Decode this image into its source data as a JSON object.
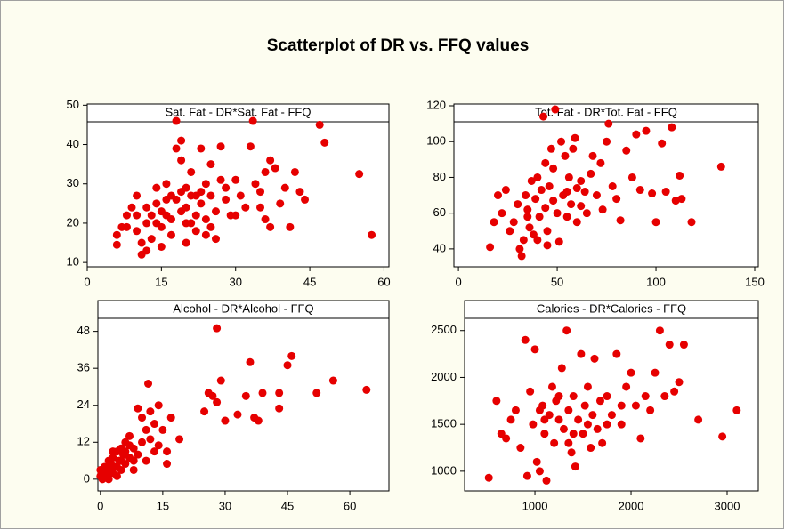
{
  "title": "Scatterplot of DR vs. FFQ values",
  "chart_data": [
    {
      "type": "scatter",
      "title": "Sat. Fat - DR*Sat. Fat - FFQ",
      "color": "#e60000",
      "xlim": [
        0,
        61
      ],
      "ylim": [
        8.9,
        50.3
      ],
      "xticks": [
        0,
        15,
        30,
        45,
        60
      ],
      "yticks": [
        10,
        20,
        30,
        40,
        50
      ],
      "x": [
        6,
        6,
        7,
        8,
        9,
        10,
        10,
        11,
        11,
        12,
        12,
        13,
        13,
        14,
        14,
        15,
        15,
        16,
        16,
        17,
        17,
        18,
        18,
        19,
        19,
        19,
        20,
        20,
        20,
        21,
        21,
        22,
        22,
        23,
        23,
        24,
        24,
        25,
        25,
        26,
        27,
        27,
        28,
        29,
        30,
        31,
        32,
        33,
        33.5,
        34,
        35,
        36,
        37,
        37,
        38,
        39,
        40,
        41,
        42,
        43,
        44,
        47,
        48,
        55,
        57.5,
        14,
        16,
        18,
        20,
        22,
        24,
        26,
        15,
        17,
        19,
        21,
        23,
        25,
        12,
        10,
        8,
        28,
        30,
        36,
        35
      ],
      "values": [
        14.5,
        17,
        19,
        22,
        24,
        27,
        18,
        12,
        15,
        13,
        20,
        16,
        22,
        29,
        25,
        19,
        23,
        30,
        26,
        21,
        17,
        46,
        39,
        41,
        36,
        28,
        24,
        20,
        15,
        33,
        27,
        22,
        18,
        25,
        39,
        30,
        21,
        35,
        27,
        23,
        39.5,
        31,
        26,
        22,
        31,
        27,
        24,
        39.5,
        46,
        30,
        28,
        33,
        36,
        19,
        34,
        25,
        29,
        19,
        33,
        28,
        26,
        45,
        40.5,
        32.5,
        17,
        20,
        22,
        26,
        29,
        27,
        17,
        16,
        14,
        27,
        23,
        20,
        28,
        19,
        24,
        22,
        19,
        29,
        22,
        21,
        24
      ]
    },
    {
      "type": "scatter",
      "title": "Tot. Fat - DR*Tot. Fat - FFQ",
      "color": "#e60000",
      "xlim": [
        -2.3,
        151.8
      ],
      "ylim": [
        30,
        121
      ],
      "xticks": [
        0,
        50,
        100,
        150
      ],
      "yticks": [
        40,
        60,
        80,
        100,
        120
      ],
      "x": [
        16,
        18,
        20,
        22,
        24,
        26,
        28,
        30,
        31,
        32,
        33,
        34,
        35,
        36,
        37,
        38,
        39,
        40,
        41,
        42,
        43,
        44,
        45,
        46,
        47,
        48,
        49,
        50,
        51,
        52,
        53,
        54,
        55,
        56,
        57,
        58,
        59,
        60,
        62,
        64,
        65,
        67,
        68,
        70,
        72,
        73,
        75,
        76,
        78,
        80,
        82,
        85,
        88,
        90,
        92,
        95,
        98,
        100,
        103,
        105,
        108,
        110,
        112,
        113,
        118,
        133,
        45,
        40,
        48,
        55,
        62,
        35,
        44,
        60
      ],
      "values": [
        41,
        55,
        70,
        60,
        73,
        50,
        55,
        65,
        40,
        36,
        45,
        70,
        62,
        52,
        78,
        48,
        68,
        80,
        58,
        73,
        114,
        63,
        50,
        75,
        96,
        85,
        118,
        60,
        44,
        100,
        70,
        92,
        58,
        80,
        65,
        96,
        102,
        55,
        78,
        72,
        60,
        82,
        92,
        70,
        88,
        62,
        100,
        110,
        75,
        68,
        56,
        95,
        80,
        104,
        73,
        106,
        71,
        55,
        99,
        72,
        108,
        67,
        81,
        68,
        55,
        86,
        42,
        45,
        67,
        72,
        64,
        58,
        88,
        74
      ]
    },
    {
      "type": "scatter",
      "title": "Alcohol - DR*Alcohol - FFQ",
      "color": "#e60000",
      "xlim": [
        -0.6,
        69.4
      ],
      "ylim": [
        -3.8,
        58
      ],
      "xticks": [
        0,
        15,
        30,
        45,
        60
      ],
      "yticks": [
        0,
        12,
        24,
        36,
        48
      ],
      "x": [
        0.5,
        1,
        1,
        1.5,
        2,
        2,
        2.5,
        3,
        3,
        3.5,
        4,
        4,
        4.5,
        5,
        5,
        5.5,
        6,
        6,
        7,
        7,
        8,
        8,
        9,
        9,
        10,
        10,
        11,
        11,
        11.5,
        12,
        12,
        13,
        13,
        14,
        14,
        15,
        16,
        16,
        17,
        19,
        25,
        26,
        27,
        28,
        28,
        29,
        30,
        33,
        35,
        36,
        37,
        38,
        39,
        43,
        43,
        45,
        46,
        52,
        56,
        64,
        1,
        2,
        3,
        4,
        5,
        6,
        7,
        0,
        0,
        8
      ],
      "values": [
        0,
        0.5,
        2,
        1,
        3,
        0,
        5,
        2,
        7,
        4,
        1,
        9,
        6,
        3,
        10,
        8,
        5,
        12,
        7,
        14,
        10,
        3,
        8,
        23,
        12,
        20,
        16,
        6,
        31,
        13,
        22,
        9,
        18,
        24,
        11,
        16,
        5,
        9,
        20,
        13,
        22,
        28,
        27,
        49,
        25,
        32,
        19,
        21,
        27,
        38,
        20,
        19,
        28,
        28,
        23,
        37,
        40,
        28,
        32,
        29,
        4,
        6,
        9,
        4,
        6,
        9,
        11,
        1,
        3,
        6
      ]
    },
    {
      "type": "scatter",
      "title": "Calories - DR*Calories - FFQ",
      "color": "#e60000",
      "xlim": [
        268,
        3324
      ],
      "ylim": [
        790,
        2820
      ],
      "xticks": [
        1000,
        2000,
        3000
      ],
      "yticks": [
        1000,
        1500,
        2000,
        2500
      ],
      "x": [
        520,
        600,
        700,
        750,
        800,
        850,
        900,
        920,
        950,
        980,
        1000,
        1020,
        1050,
        1080,
        1100,
        1120,
        1150,
        1180,
        1200,
        1220,
        1250,
        1280,
        1300,
        1330,
        1350,
        1380,
        1400,
        1420,
        1450,
        1480,
        1500,
        1520,
        1550,
        1580,
        1600,
        1620,
        1650,
        1680,
        1700,
        1750,
        1800,
        1850,
        1900,
        1950,
        2000,
        2050,
        2100,
        2150,
        2200,
        2250,
        2300,
        2350,
        2400,
        2450,
        2500,
        2550,
        2700,
        2950,
        3100,
        650,
        1100,
        1250,
        1400,
        1550,
        1750,
        1900,
        1050,
        1350
      ],
      "values": [
        930,
        1750,
        1350,
        1550,
        1650,
        1250,
        2400,
        950,
        1850,
        1500,
        2300,
        1100,
        1000,
        1700,
        1400,
        900,
        1600,
        1900,
        1300,
        1750,
        1550,
        2100,
        1450,
        2500,
        1650,
        1200,
        1800,
        1050,
        1550,
        2250,
        1400,
        1700,
        1900,
        1250,
        1600,
        2200,
        1450,
        1750,
        1300,
        1800,
        1600,
        2250,
        1500,
        1900,
        2050,
        1700,
        1350,
        1800,
        1650,
        2050,
        2500,
        1800,
        2350,
        1850,
        1950,
        2350,
        1550,
        1370,
        1650,
        1400,
        1550,
        1800,
        1400,
        1500,
        1500,
        1700,
        1650,
        1300
      ]
    }
  ]
}
